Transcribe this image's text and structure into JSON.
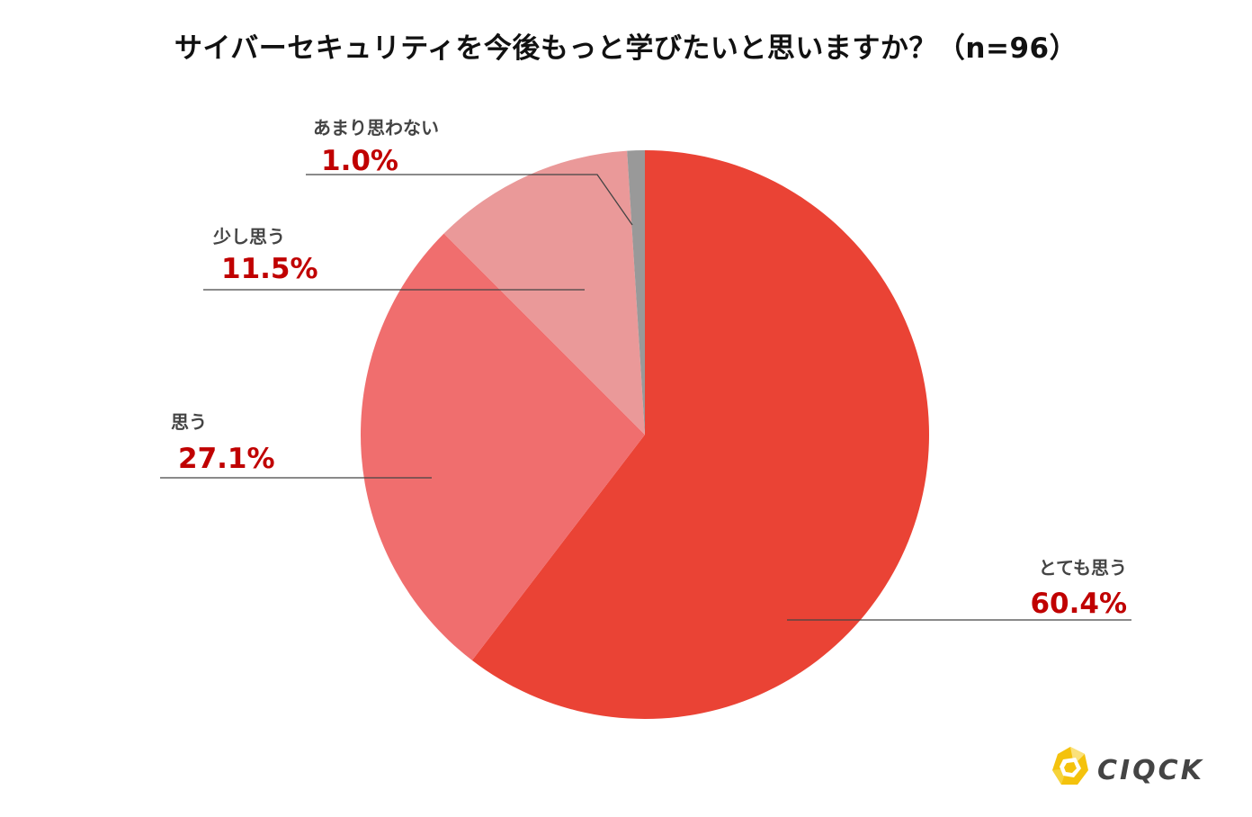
{
  "title": "サイバーセキュリティを今後もっと学びたいと思いますか？（n=96）",
  "chart_data": {
    "type": "pie",
    "title": "サイバーセキュリティを今後もっと学びたいと思いますか？（n=96）",
    "legend": "none",
    "slices": [
      {
        "label": "とても思う",
        "value": 60.4,
        "display": "60.4%",
        "color": "#ea4335"
      },
      {
        "label": "思う",
        "value": 27.1,
        "display": "27.1%",
        "color": "#f06e6e"
      },
      {
        "label": "少し思う",
        "value": 11.5,
        "display": "11.5%",
        "color": "#ea9999"
      },
      {
        "label": "あまり思わない",
        "value": 1.0,
        "display": "1.0%",
        "color": "#999999"
      }
    ]
  },
  "logo": {
    "text": "CIQCK",
    "icon": "logo-mark-icon",
    "colors": [
      "#f4c20d",
      "#fbe17a"
    ]
  }
}
